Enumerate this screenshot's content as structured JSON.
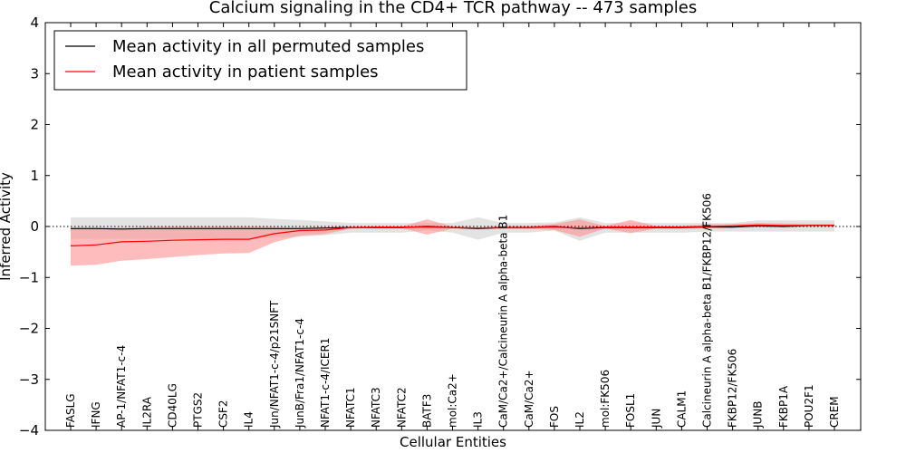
{
  "chart_data": {
    "type": "line",
    "title": "Calcium signaling in the CD4+ TCR pathway -- 473 samples",
    "xlabel": "Cellular Entities",
    "ylabel": "Inferred Activity",
    "ylim": [
      -4,
      4
    ],
    "yticks": [
      "4",
      "3",
      "2",
      "1",
      "0",
      "−1",
      "−2",
      "−3",
      "−4"
    ],
    "ytick_values": [
      4,
      3,
      2,
      1,
      0,
      -1,
      -2,
      -3,
      -4
    ],
    "zero_line": "dotted",
    "categories": [
      "FASLG",
      "IFNG",
      "AP-1/NFAT1-c-4",
      "IL2RA",
      "CD40LG",
      "PTGS2",
      "CSF2",
      "IL4",
      "Jun/NFAT1-c-4/p21SNFT",
      "JunB/Fra1/NFAT1-c-4",
      "NFAT1-c-4/ICER1",
      "NFATC1",
      "NFATC3",
      "NFATC2",
      "BATF3",
      "mol:Ca2+",
      "IL3",
      "CaM/Ca2+/Calcineurin A alpha-beta B1",
      "CaM/Ca2+",
      "FOS",
      "IL2",
      "mol:FK506",
      "FOSL1",
      "JUN",
      "CALM1",
      "Calcineurin A alpha-beta B1/FKBP12/FK506",
      "FKBP12/FK506",
      "JUNB",
      "FKBP1A",
      "POU2F1",
      "CREM"
    ],
    "series": [
      {
        "name": "Mean activity in all permuted samples",
        "color": "#000000",
        "values": [
          -0.04,
          -0.04,
          -0.05,
          -0.04,
          -0.04,
          -0.04,
          -0.04,
          -0.04,
          -0.04,
          -0.04,
          -0.03,
          -0.02,
          -0.02,
          -0.02,
          0.0,
          -0.02,
          -0.04,
          -0.02,
          -0.02,
          0.0,
          -0.04,
          -0.02,
          -0.02,
          -0.02,
          -0.02,
          -0.01,
          -0.01,
          0.01,
          0.0,
          0.02,
          0.02
        ],
        "band_upper": [
          0.18,
          0.18,
          0.18,
          0.18,
          0.18,
          0.18,
          0.18,
          0.18,
          0.15,
          0.13,
          0.1,
          0.07,
          0.07,
          0.07,
          0.07,
          0.07,
          0.18,
          0.07,
          0.07,
          0.08,
          0.18,
          0.07,
          0.07,
          0.07,
          0.07,
          0.07,
          0.07,
          0.12,
          0.12,
          0.12,
          0.12
        ],
        "band_lower": [
          -0.24,
          -0.24,
          -0.24,
          -0.24,
          -0.24,
          -0.24,
          -0.24,
          -0.24,
          -0.22,
          -0.2,
          -0.17,
          -0.12,
          -0.12,
          -0.12,
          -0.08,
          -0.12,
          -0.26,
          -0.12,
          -0.12,
          -0.08,
          -0.28,
          -0.12,
          -0.12,
          -0.12,
          -0.12,
          -0.1,
          -0.1,
          -0.1,
          -0.1,
          -0.1,
          -0.1
        ]
      },
      {
        "name": "Mean activity in patient samples",
        "color": "#ff0000",
        "band_color": "#ff9090",
        "values": [
          -0.38,
          -0.36,
          -0.3,
          -0.29,
          -0.27,
          -0.26,
          -0.25,
          -0.25,
          -0.14,
          -0.08,
          -0.07,
          -0.02,
          -0.01,
          -0.01,
          -0.01,
          -0.02,
          -0.03,
          -0.02,
          -0.02,
          -0.01,
          -0.03,
          -0.01,
          -0.01,
          -0.01,
          -0.01,
          0.0,
          0.01,
          0.03,
          0.02,
          0.02,
          0.02
        ],
        "band_upper": [
          -0.02,
          -0.02,
          -0.02,
          -0.01,
          0.0,
          0.0,
          0.0,
          0.0,
          -0.01,
          -0.02,
          -0.01,
          0.0,
          0.0,
          0.0,
          0.14,
          0.0,
          -0.02,
          0.01,
          0.01,
          0.05,
          0.14,
          0.01,
          0.13,
          0.01,
          0.01,
          0.04,
          0.05,
          0.07,
          0.06,
          0.05,
          0.05
        ],
        "band_lower": [
          -0.77,
          -0.75,
          -0.67,
          -0.64,
          -0.6,
          -0.56,
          -0.53,
          -0.52,
          -0.31,
          -0.18,
          -0.15,
          -0.04,
          -0.03,
          -0.03,
          -0.16,
          -0.04,
          -0.05,
          -0.05,
          -0.05,
          -0.07,
          -0.2,
          -0.04,
          -0.13,
          -0.04,
          -0.04,
          -0.02,
          -0.02,
          0.0,
          -0.01,
          0.0,
          0.0
        ]
      }
    ],
    "legend_position": "top-left"
  }
}
